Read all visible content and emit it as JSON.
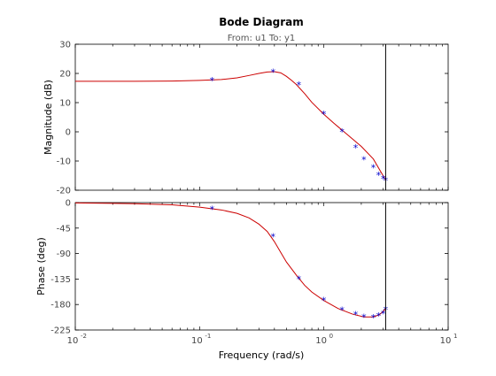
{
  "chart_data": {
    "type": "line",
    "title": "Bode Diagram",
    "subtitle": "From: u1  To: y1",
    "xlabel": "Frequency  (rad/s)",
    "x_scale": "log",
    "xlim": [
      0.01,
      10
    ],
    "x_ticks": [
      {
        "value": 0.01,
        "base": "10",
        "exp": "-2"
      },
      {
        "value": 0.1,
        "base": "10",
        "exp": "-1"
      },
      {
        "value": 1,
        "base": "10",
        "exp": "0"
      },
      {
        "value": 10,
        "base": "10",
        "exp": "1"
      }
    ],
    "vertical_marker_x": 3.14,
    "grid": false,
    "colors": {
      "line": "#cc0000",
      "marker": "#0000cc",
      "axes": "#000000",
      "ticks": "#444444",
      "marker_line": "#000000"
    },
    "panels": [
      {
        "name": "magnitude",
        "ylabel": "Magnitude (dB)",
        "ylim": [
          -20,
          30
        ],
        "yticks": [
          30,
          20,
          10,
          0,
          -10,
          -20
        ],
        "tick_labels": [
          "30",
          "20",
          "10",
          "0",
          "-10",
          "-20"
        ],
        "series": [
          {
            "style": "line",
            "x": [
              0.01,
              0.03,
              0.06,
              0.1,
              0.15,
              0.2,
              0.25,
              0.3,
              0.35,
              0.4,
              0.45,
              0.5,
              0.55,
              0.6,
              0.7,
              0.8,
              1.0,
              1.2,
              1.5,
              2.0,
              2.5,
              3.14
            ],
            "y": [
              17.3,
              17.3,
              17.4,
              17.6,
              17.9,
              18.5,
              19.3,
              20.0,
              20.5,
              20.6,
              20.2,
              19.0,
              17.6,
              16.2,
              13.1,
              10.1,
              6.0,
              3.0,
              -0.5,
              -5.0,
              -9.3,
              -16.5
            ]
          },
          {
            "style": "marker",
            "x": [
              0.126,
              0.39,
              0.628,
              1.0,
              1.4,
              1.8,
              2.1,
              2.5,
              2.75,
              3.0,
              3.14
            ],
            "y": [
              17.6,
              20.5,
              16.1,
              6.0,
              0.0,
              -5.5,
              -9.5,
              -12.3,
              -14.8,
              -16.0,
              -16.7
            ]
          }
        ]
      },
      {
        "name": "phase",
        "ylabel": "Phase (deg)",
        "ylim": [
          -225,
          0
        ],
        "yticks": [
          0,
          -45,
          -90,
          -135,
          -180,
          -225
        ],
        "tick_labels": [
          "0",
          "-45",
          "-90",
          "-135",
          "-180",
          "-225"
        ],
        "series": [
          {
            "style": "line",
            "x": [
              0.01,
              0.03,
              0.06,
              0.1,
              0.15,
              0.2,
              0.25,
              0.3,
              0.35,
              0.4,
              0.45,
              0.5,
              0.6,
              0.7,
              0.8,
              1.0,
              1.3,
              1.7,
              2.1,
              2.5,
              2.8,
              3.0,
              3.14
            ],
            "y": [
              -0.5,
              -2,
              -4,
              -8,
              -13,
              -19,
              -27,
              -38,
              -51,
              -69,
              -88,
              -105,
              -128,
              -146,
              -158,
              -173,
              -187,
              -197,
              -202,
              -202,
              -198,
              -192,
              -187
            ]
          },
          {
            "style": "marker",
            "x": [
              0.126,
              0.39,
              0.628,
              1.0,
              1.4,
              1.8,
              2.1,
              2.5,
              2.75,
              3.0,
              3.14
            ],
            "y": [
              -12,
              -60,
              -135,
              -173,
              -190,
              -198,
              -202,
              -203,
              -200,
              -196,
              -189
            ]
          }
        ]
      }
    ]
  }
}
